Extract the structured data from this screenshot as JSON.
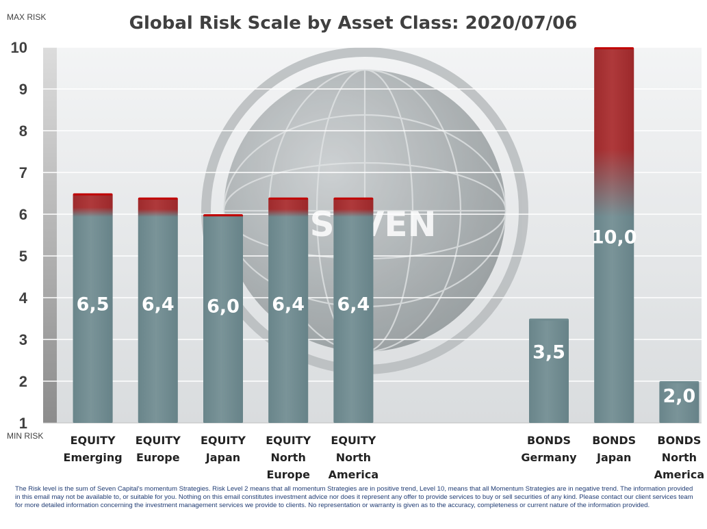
{
  "chart_data": {
    "type": "bar",
    "title": "Global Risk Scale by Asset Class: 2020/07/06",
    "max_label": "MAX RISK",
    "min_label": "MIN RISK",
    "ylim": [
      1,
      10
    ],
    "yticks": [
      1,
      2,
      3,
      4,
      5,
      6,
      7,
      8,
      9,
      10
    ],
    "grid": true,
    "watermark": "SEVEN",
    "categories": [
      {
        "lines": [
          "EQUITY",
          "Emerging"
        ],
        "value": 6.5,
        "label": "6,5"
      },
      {
        "lines": [
          "EQUITY",
          "Europe"
        ],
        "value": 6.4,
        "label": "6,4"
      },
      {
        "lines": [
          "EQUITY",
          "Japan"
        ],
        "value": 6.0,
        "label": "6,0"
      },
      {
        "lines": [
          "EQUITY",
          "North",
          "Europe"
        ],
        "value": 6.4,
        "label": "6,4"
      },
      {
        "lines": [
          "EQUITY",
          "North",
          "America"
        ],
        "value": 6.4,
        "label": "6,4"
      },
      {
        "lines": [
          ""
        ],
        "value": null,
        "label": ""
      },
      {
        "lines": [
          ""
        ],
        "value": null,
        "label": ""
      },
      {
        "lines": [
          "BONDS",
          "Germany"
        ],
        "value": 3.5,
        "label": "3,5"
      },
      {
        "lines": [
          "BONDS",
          "Japan"
        ],
        "value": 10.0,
        "label": "10,0"
      },
      {
        "lines": [
          "BONDS",
          "North",
          "America"
        ],
        "value": 2.0,
        "label": "2,0"
      }
    ],
    "colors": {
      "bar": "#6f8b90",
      "bar_top": "#c00000",
      "bar_light": "#8ea4a8"
    }
  },
  "disclaimer": "The Risk level is the sum of Seven Capital's momentum Strategies. Risk Level 2 means that all momentum Strategies are in positive trend, Level 10, means that all Momentum Strategies are in negative trend. The information provided in this email may not be available to, or suitable for you. Nothing on this email constitutes investment advice nor does it represent any offer to provide services to buy or sell securities of any kind. Please contact our client services team for more detailed information concerning the investment management services we provide to clients. No representation or warranty is given as to the accuracy, completeness or current nature of the information provided."
}
